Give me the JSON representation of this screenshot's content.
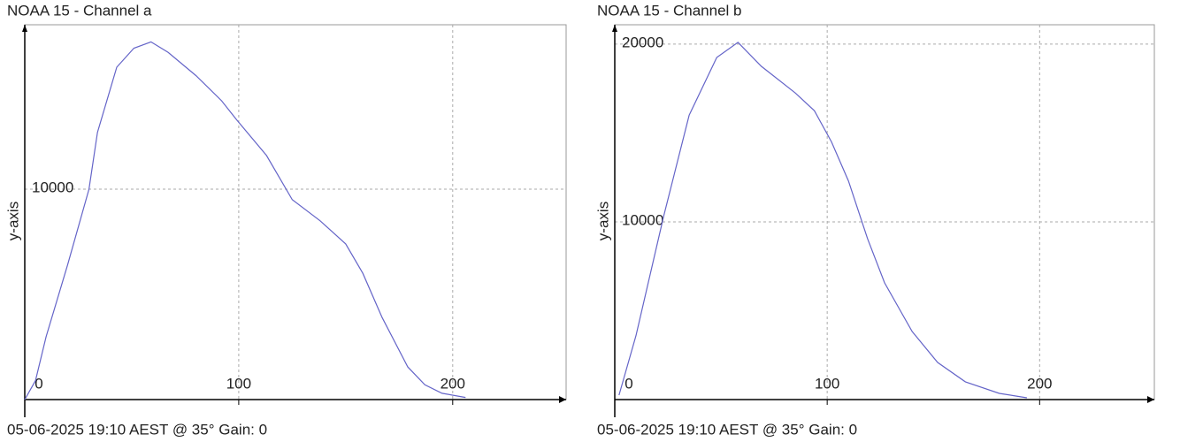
{
  "chart_data": [
    {
      "type": "line",
      "title": "NOAA 15 - Channel a",
      "ylabel": "y-axis",
      "footer": "05-06-2025 19:10 AEST @ 35° Gain: 0",
      "xlim": [
        0,
        253
      ],
      "ylim": [
        0,
        17815
      ],
      "xticks": [
        0,
        100,
        200
      ],
      "yticks": [
        10000
      ],
      "grid": true,
      "series": [
        {
          "name": "Channel a",
          "color": "#6464c8",
          "x": [
            0,
            5,
            10,
            20,
            30,
            34,
            43,
            51,
            59,
            67,
            80,
            92,
            99,
            113,
            125,
            138,
            150,
            158,
            167,
            179,
            187,
            195,
            206
          ],
          "values": [
            0,
            900,
            3000,
            6400,
            10000,
            12700,
            15800,
            16700,
            17000,
            16500,
            15400,
            14200,
            13300,
            11600,
            9500,
            8500,
            7400,
            6000,
            3900,
            1550,
            700,
            300,
            100
          ]
        }
      ]
    },
    {
      "type": "line",
      "title": "NOAA 15 - Channel b",
      "ylabel": "y-axis",
      "footer": "05-06-2025 19:10 AEST @ 35° Gain: 0",
      "xlim": [
        0,
        254
      ],
      "ylim": [
        0,
        21090
      ],
      "xticks": [
        0,
        100,
        200
      ],
      "yticks": [
        10000,
        20000
      ],
      "grid": true,
      "series": [
        {
          "name": "Channel b",
          "color": "#6464c8",
          "x": [
            2,
            10,
            23,
            35,
            48,
            58,
            69,
            85,
            94,
            102,
            110,
            119,
            127,
            140,
            152,
            165,
            181,
            194
          ],
          "values": [
            250,
            3600,
            10300,
            16000,
            19250,
            20100,
            18750,
            17250,
            16250,
            14500,
            12300,
            9050,
            6570,
            3830,
            2090,
            1000,
            350,
            100
          ]
        }
      ]
    }
  ]
}
